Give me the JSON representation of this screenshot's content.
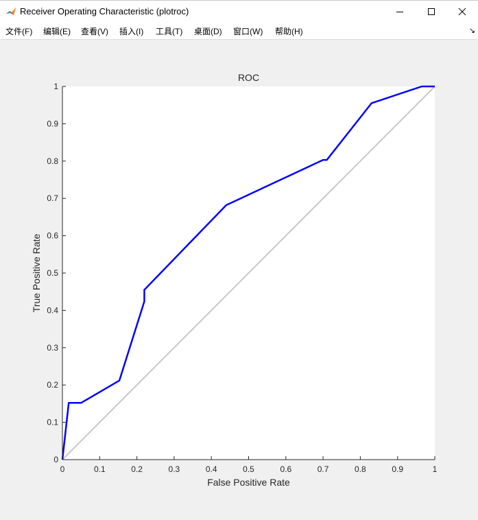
{
  "window": {
    "title": "Receiver Operating Characteristic (plotroc)",
    "icons": [
      "matlab-icon",
      "minimize-icon",
      "maximize-icon",
      "close-icon"
    ]
  },
  "menu": {
    "items": [
      "文件(F)",
      "编辑(E)",
      "查看(V)",
      "插入(I)",
      "工具(T)",
      "桌面(D)",
      "窗口(W)",
      "帮助(H)"
    ],
    "dock_glyph": "↘"
  },
  "chart_data": {
    "type": "line",
    "title": "ROC",
    "xlabel": "False Positive Rate",
    "ylabel": "True Positive Rate",
    "xlim": [
      0,
      1
    ],
    "ylim": [
      0,
      1
    ],
    "xticks": [
      "0",
      "0.1",
      "0.2",
      "0.3",
      "0.4",
      "0.5",
      "0.6",
      "0.7",
      "0.8",
      "0.9",
      "1"
    ],
    "yticks": [
      "0",
      "0.1",
      "0.2",
      "0.3",
      "0.4",
      "0.5",
      "0.6",
      "0.7",
      "0.8",
      "0.9",
      "1"
    ],
    "grid": false,
    "series": [
      {
        "color": "#0000ff",
        "x": [
          0,
          0.017,
          0.05,
          0.153,
          0.22,
          0.22,
          0.44,
          0.7,
          0.71,
          0.83,
          0.965,
          1.0
        ],
        "y": [
          0,
          0.152,
          0.152,
          0.212,
          0.424,
          0.455,
          0.682,
          0.803,
          0.803,
          0.955,
          1.0,
          1.0
        ]
      },
      {
        "color": "#c8c8c8",
        "x": [
          0,
          1
        ],
        "y": [
          0,
          1
        ]
      }
    ]
  }
}
